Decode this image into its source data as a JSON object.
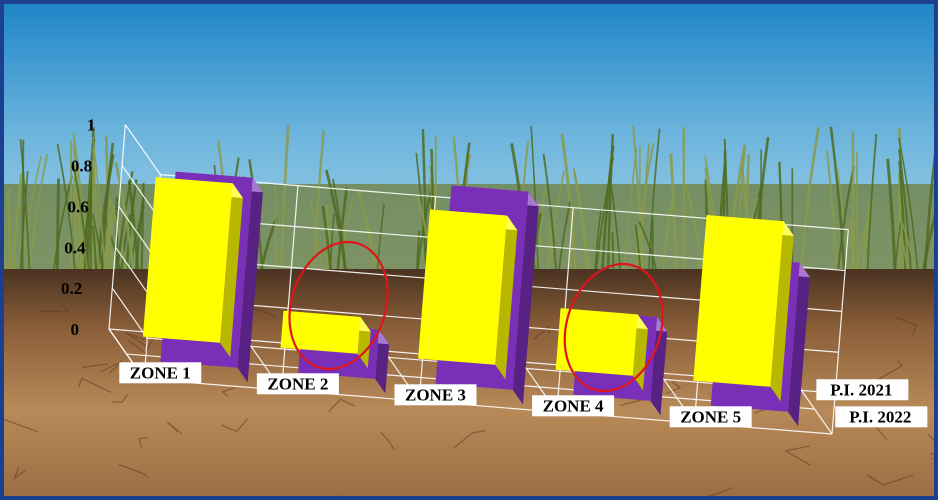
{
  "chart_data": {
    "type": "bar",
    "style": "3d-clustered-depth",
    "categories": [
      "ZONE 1",
      "ZONE 2",
      "ZONE 3",
      "ZONE 4",
      "ZONE 5"
    ],
    "series": [
      {
        "name": "P.I. 2021",
        "values": [
          0.78,
          0.18,
          0.73,
          0.3,
          0.81
        ]
      },
      {
        "name": "P.I. 2022",
        "values": [
          0.93,
          0.24,
          0.97,
          0.41,
          0.73
        ]
      }
    ],
    "yticks": [
      "0",
      "0.2",
      "0.4",
      "0.6",
      "0.8",
      "1"
    ],
    "ylim": [
      0,
      1
    ],
    "grid": true,
    "annotations": [
      {
        "type": "ellipse",
        "category": "ZONE 2",
        "color": "#e0141c"
      },
      {
        "type": "ellipse",
        "category": "ZONE 4",
        "color": "#e0141c"
      }
    ],
    "colors": {
      "P.I. 2021": "#ffff00",
      "P.I. 2022": "#7a2fb8",
      "grid": "#ffffff",
      "annotation": "#e0141c",
      "border": "#1c3f8f"
    }
  }
}
